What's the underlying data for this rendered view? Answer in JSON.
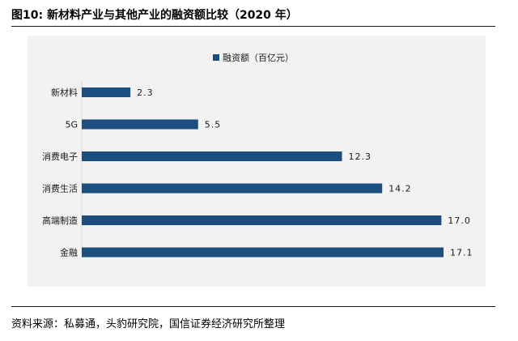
{
  "figure": {
    "title": "图10: 新材料产业与其他产业的融资额比较（2020 年）",
    "source": "资料来源：私募通，头豹研究院，国信证券经济研究所整理"
  },
  "colors": {
    "bar": "#1c4e80",
    "plot_background": "#f2f2f2",
    "text": "#1a1a1a"
  },
  "chart_data": {
    "type": "bar",
    "orientation": "horizontal",
    "title": "",
    "xlabel": "",
    "ylabel": "",
    "legend": {
      "position": "top-center"
    },
    "grid": false,
    "categories": [
      "新材料",
      "5G",
      "消费电子",
      "消费生活",
      "高端制造",
      "金融"
    ],
    "series": [
      {
        "name": "融资额（百亿元）",
        "values": [
          2.3,
          5.5,
          12.3,
          14.2,
          17.0,
          17.1
        ],
        "labels": [
          "2.3",
          "5.5",
          "12.3",
          "14.2",
          "17.0",
          "17.1"
        ]
      }
    ],
    "xlim": [
      0,
      17.1
    ]
  }
}
